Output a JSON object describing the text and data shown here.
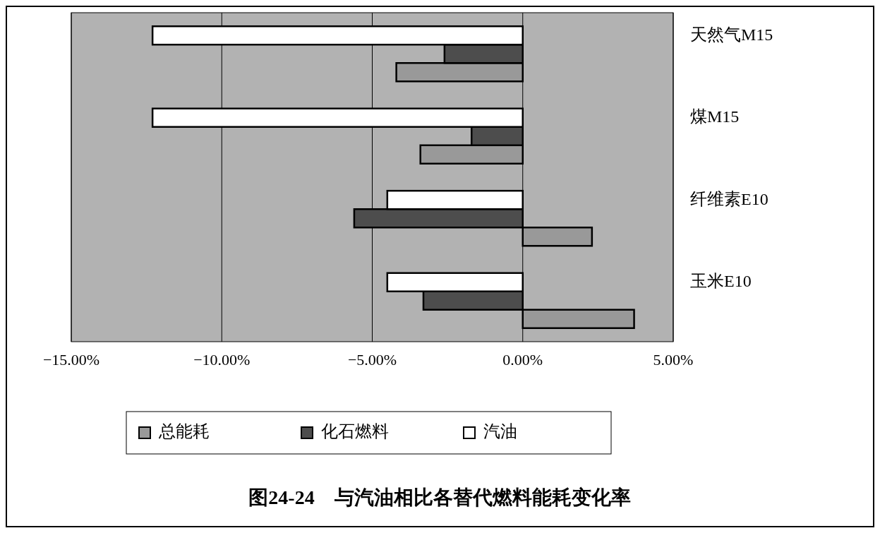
{
  "chart_data": {
    "type": "bar",
    "orientation": "horizontal",
    "title": "图24-24　与汽油相比各替代燃料能耗变化率",
    "categories": [
      "天然气M15",
      "煤M15",
      "纤维素E10",
      "玉米E10"
    ],
    "series": [
      {
        "name": "总能耗",
        "color": "#999999",
        "values": [
          -4.2,
          -3.4,
          2.3,
          3.7
        ]
      },
      {
        "name": "化石燃料",
        "color": "#4d4d4d",
        "values": [
          -2.6,
          -1.7,
          -5.6,
          -3.3
        ]
      },
      {
        "name": "汽油",
        "color": "#ffffff",
        "values": [
          -12.3,
          -12.3,
          -4.5,
          -4.5
        ]
      }
    ],
    "xlim": [
      -15,
      5
    ],
    "xticks": [
      {
        "value": -15,
        "label": "−15.00%"
      },
      {
        "value": -10,
        "label": "−10.00%"
      },
      {
        "value": -5,
        "label": "−5.00%"
      },
      {
        "value": 0,
        "label": "0.00%"
      },
      {
        "value": 5,
        "label": "5.00%"
      }
    ],
    "grid": "x",
    "legend": "bottom"
  }
}
